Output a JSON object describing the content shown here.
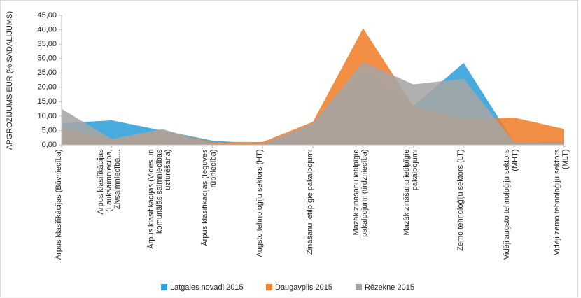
{
  "chart_data": {
    "type": "area",
    "y_label": "APGROZĪJUMS EUR  (% SADALĪJUMS)",
    "categories": [
      "Ārpus klasifikācijas (Būvniecība)",
      "Ārpus klasifikācijas (Lauksaimniecība, Zivsaimniecība,...",
      "Ārpus klasifikācijas (Vides un komunālās saimniecības uzturēšana)",
      "Ārpus klasifikācijas (Ieguves rūpniecība)",
      "Augsto tehnoloģiju sektors (HT)",
      "Zināšanu ietilpīgie pakalpojumi",
      "Mazāk zināšanu ietilpīgie pakalpojumi (tirdzniecība)",
      "Mazāk zināšanu ietilpīgie pakalpojumi",
      "Zemo tehnoloģiju sektors (LT)",
      "Vidēji augsto tehnoloģiju sektors (MHT)",
      "Vidēji zemo tehnoloģiju sektors (MLT)"
    ],
    "series": [
      {
        "name": "Latgales novadi 2015",
        "color": "#2e9fd9",
        "values": [
          7.5,
          8.5,
          5,
          1.5,
          0.3,
          7,
          25.5,
          13.5,
          28.5,
          1,
          1
        ]
      },
      {
        "name": "Daugavpils 2015",
        "color": "#f0802a",
        "values": [
          6,
          2,
          5,
          1,
          1,
          8,
          40.5,
          13.5,
          9,
          9.5,
          5.5
        ]
      },
      {
        "name": "Rēzekne 2015",
        "color": "#a5a5a5",
        "values": [
          12.5,
          2,
          5.5,
          0.5,
          0.3,
          7.5,
          28.8,
          21,
          23,
          1,
          0.8
        ]
      }
    ],
    "ylim": [
      0,
      45
    ],
    "yticks": [
      {
        "value": 0,
        "label": "0,00"
      },
      {
        "value": 5,
        "label": "5,00"
      },
      {
        "value": 10,
        "label": "10,00"
      },
      {
        "value": 15,
        "label": "15,00"
      },
      {
        "value": 20,
        "label": "20,00"
      },
      {
        "value": 25,
        "label": "25,00"
      },
      {
        "value": 30,
        "label": "30,00"
      },
      {
        "value": 35,
        "label": "35,00"
      },
      {
        "value": 40,
        "label": "40,00"
      },
      {
        "value": 45,
        "label": "45,00"
      }
    ],
    "legend": "bottom"
  }
}
